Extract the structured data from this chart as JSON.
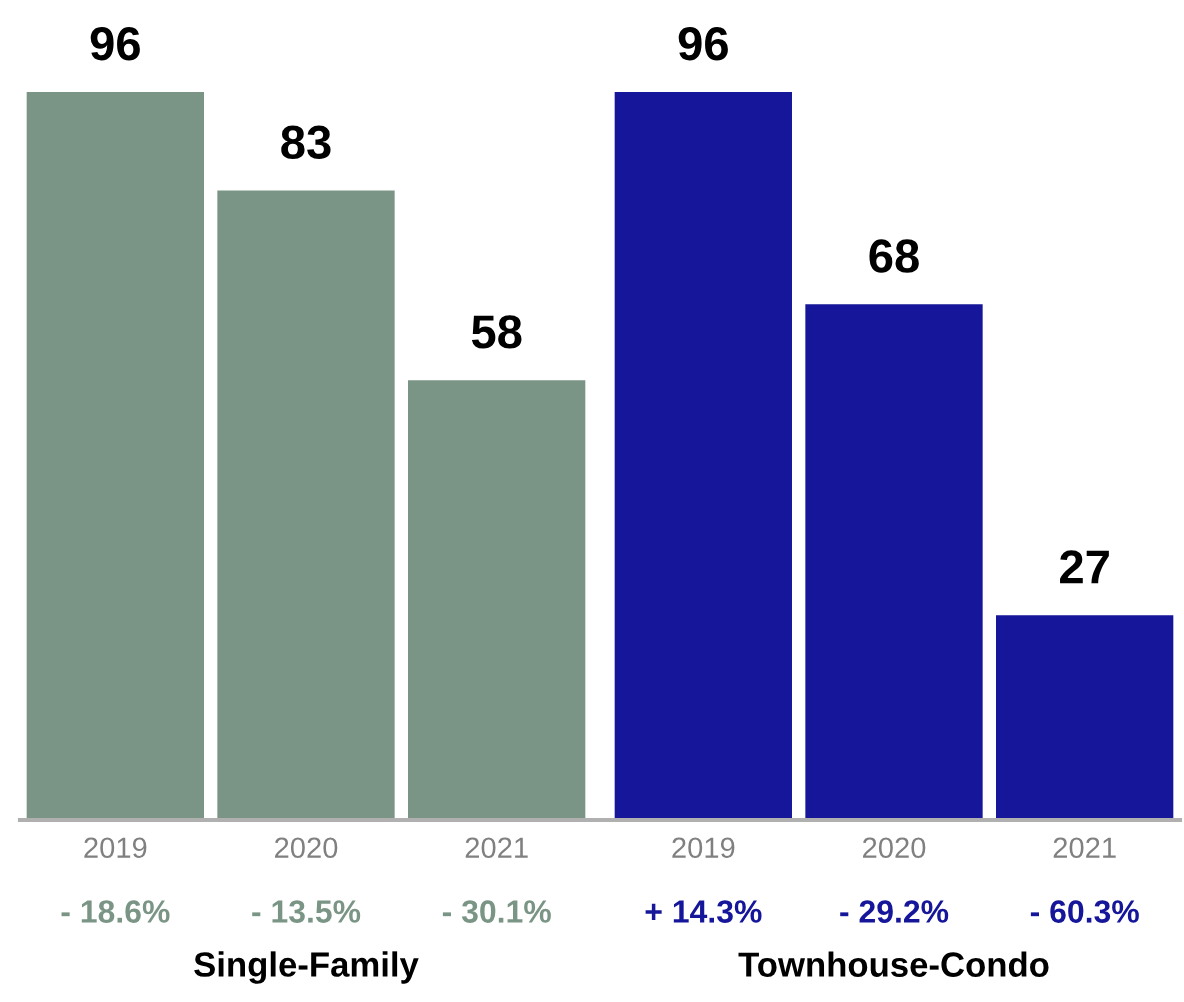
{
  "chart_data": [
    {
      "type": "bar",
      "categories": [
        "2019",
        "2020",
        "2021"
      ],
      "values": [
        96,
        83,
        58
      ],
      "color": "#7a9585",
      "data_labels": true,
      "xlabel": "Single-Family",
      "tick_labels": "x",
      "grid": false,
      "annotations": [
        "- 18.6%",
        "- 13.5%",
        "- 30.1%"
      ]
    },
    {
      "type": "bar",
      "categories": [
        "2019",
        "2020",
        "2021"
      ],
      "values": [
        96,
        68,
        27
      ],
      "color": "#16169a",
      "data_labels": true,
      "xlabel": "Townhouse-Condo",
      "tick_labels": "x",
      "grid": false,
      "annotations": [
        "+ 14.3%",
        "- 29.2%",
        "- 60.3%"
      ]
    }
  ]
}
